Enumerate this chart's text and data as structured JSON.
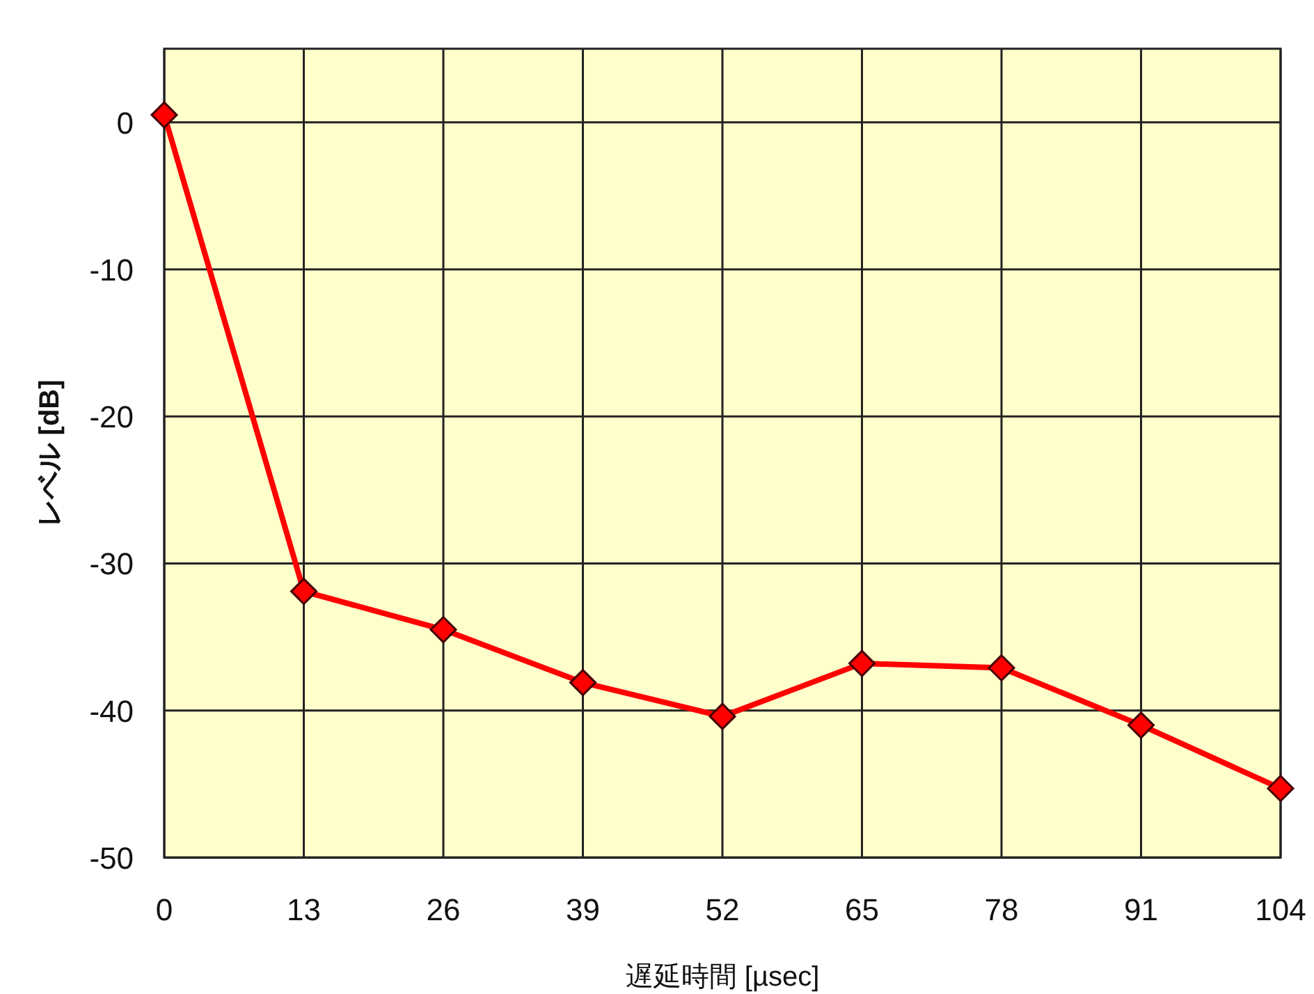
{
  "chart_data": {
    "type": "line",
    "xlabel": "遅延時間 [µsec]",
    "ylabel": "レベル [dB]",
    "x": [
      0,
      13,
      26,
      39,
      52,
      65,
      78,
      91,
      104
    ],
    "series": [
      {
        "color": "#ff0000",
        "values": [
          0.5,
          -31.9,
          -34.5,
          -38.1,
          -40.4,
          -36.8,
          -37.1,
          -41.0,
          -45.3
        ]
      }
    ],
    "xlim": [
      0,
      104
    ],
    "xticks": [
      0,
      13,
      26,
      39,
      52,
      65,
      78,
      91,
      104
    ],
    "ylim": [
      -50,
      5
    ],
    "yticks": [
      0,
      -10,
      -20,
      -30,
      -40,
      -50
    ],
    "grid": true,
    "marker": "diamond",
    "line_style": "solid"
  }
}
